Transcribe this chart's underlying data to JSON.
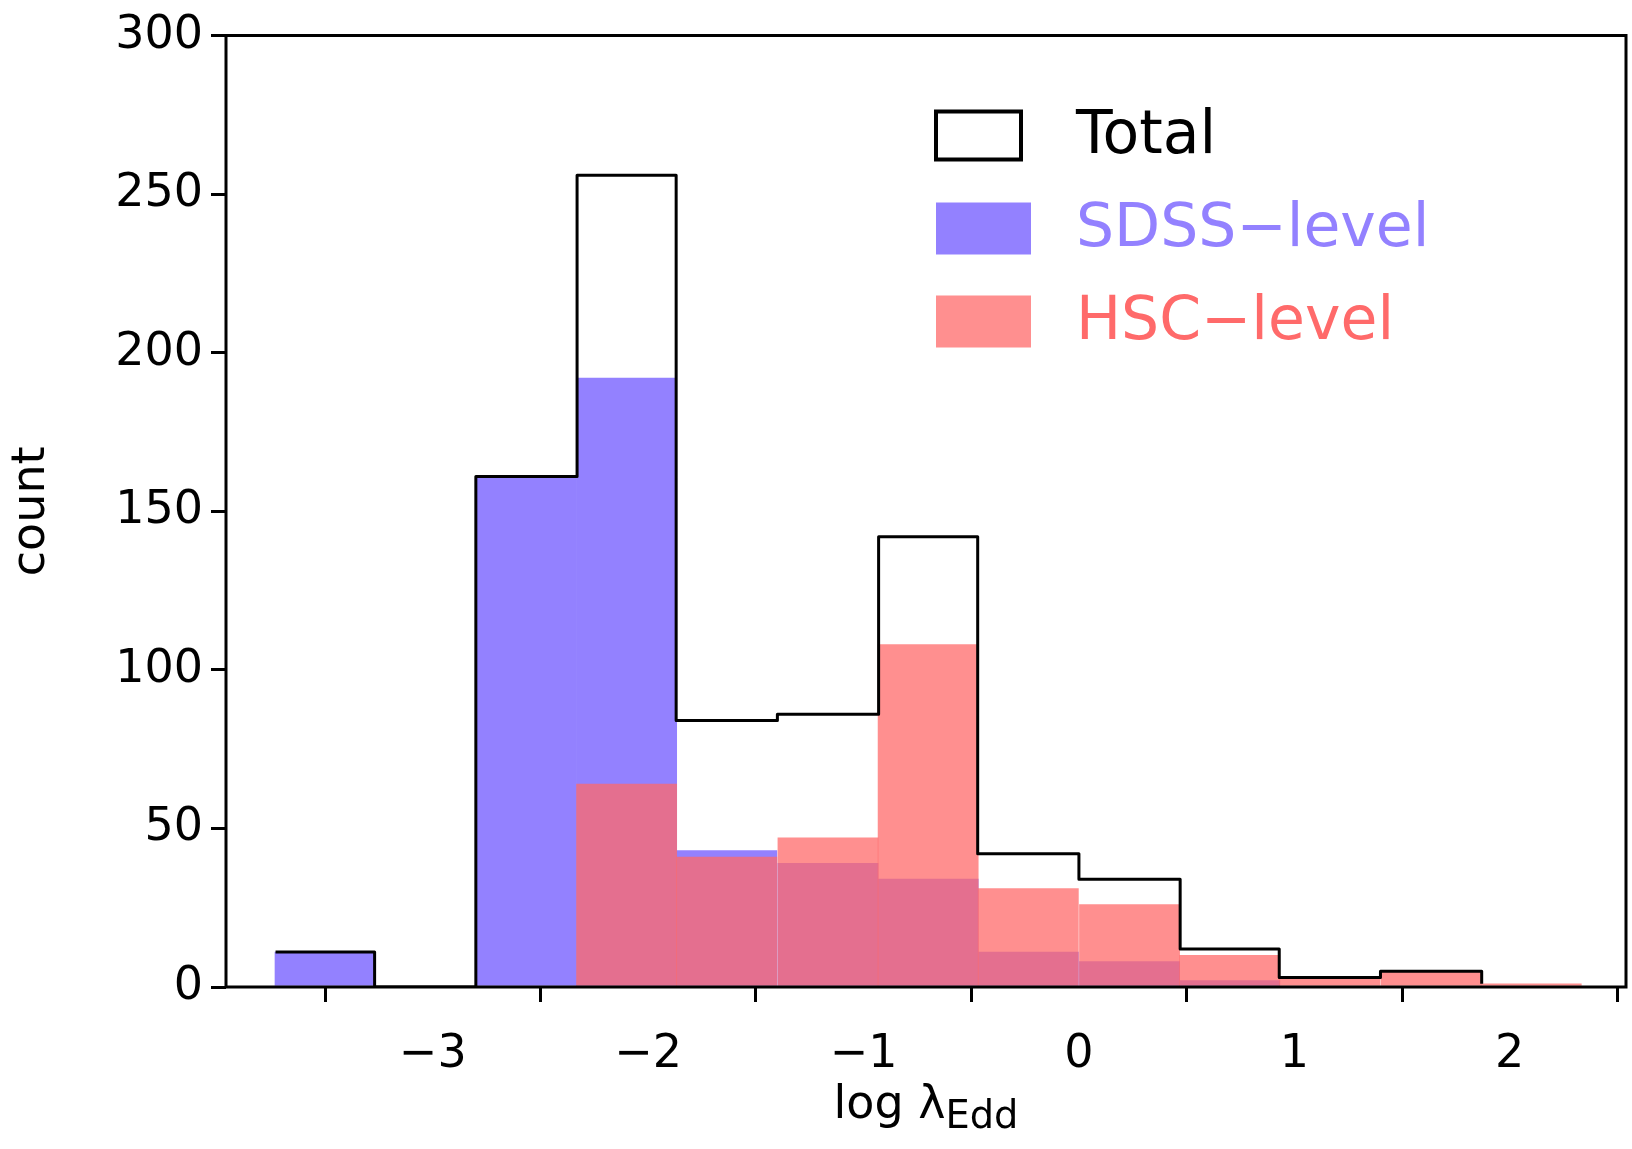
{
  "chart_data": {
    "type": "histogram",
    "xlabel": "log λ$_{Edd}$",
    "ylabel": "count",
    "bins": [
      -3.73,
      -3.27,
      -2.8,
      -2.33,
      -1.87,
      -1.4,
      -0.93,
      -0.47,
      0,
      0.47,
      0.93,
      1.4,
      1.87,
      2.33
    ],
    "series": [
      {
        "name": "Total",
        "type": "step",
        "color": "#000000",
        "x": [
          -3.73,
          -3.27,
          -2.8,
          -2.33,
          -1.87,
          -1.4,
          -0.93,
          -0.47,
          0,
          0.47,
          0.93,
          1.4,
          1.87
        ],
        "values": [
          11,
          0,
          161,
          256,
          84,
          86,
          142,
          42,
          34,
          12,
          3,
          5,
          1
        ]
      },
      {
        "name": "SDSS−level",
        "color": "#9381ff",
        "values": [
          11,
          0,
          161,
          192,
          43,
          39,
          34,
          11,
          8,
          2,
          0,
          0,
          0
        ]
      },
      {
        "name": "HSC−level",
        "color": "#ff6a6a",
        "values": [
          0,
          0,
          0,
          64,
          41,
          47,
          108,
          31,
          26,
          10,
          3,
          5,
          1
        ]
      }
    ],
    "xlim": [
      -3.96,
      2.54
    ],
    "ylim": [
      0,
      300
    ],
    "xticks": [
      -3,
      -2,
      -1,
      0,
      1,
      2
    ],
    "yticks": [
      0,
      50,
      100,
      150,
      200,
      250,
      300
    ],
    "legend": "top right"
  }
}
